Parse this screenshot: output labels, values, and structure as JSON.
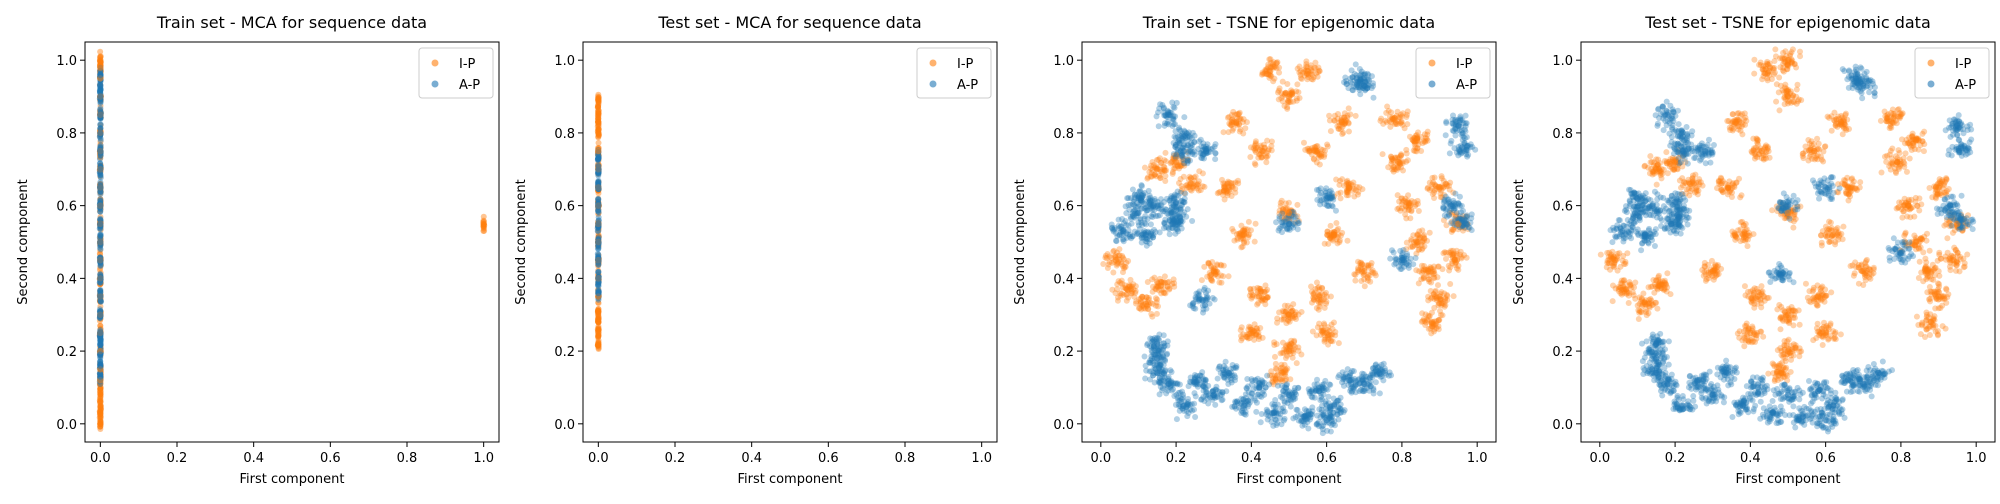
{
  "colors": {
    "ip": "#ff7f0e",
    "ap": "#1f77b4"
  },
  "chart_data": [
    {
      "type": "scatter",
      "title": "Train set - MCA for sequence data",
      "xlabel": "First component",
      "ylabel": "Second component",
      "xlim": [
        -0.04,
        1.04
      ],
      "ylim": [
        -0.05,
        1.05
      ],
      "xticks": [
        "0.0",
        "0.2",
        "0.4",
        "0.6",
        "0.8",
        "1.0"
      ],
      "yticks": [
        "0.0",
        "0.2",
        "0.4",
        "0.6",
        "0.8",
        "1.0"
      ],
      "legend": [
        "I-P",
        "A-P"
      ],
      "legend_position": "top-right",
      "series": [
        {
          "name": "I-P",
          "points": [
            [
              0.0,
              0.0
            ],
            [
              0.0,
              0.03
            ],
            [
              0.0,
              0.06
            ],
            [
              0.0,
              0.09
            ],
            [
              0.0,
              0.12
            ],
            [
              0.0,
              0.15
            ],
            [
              0.0,
              0.2
            ],
            [
              0.0,
              0.25
            ],
            [
              0.0,
              0.3
            ],
            [
              0.0,
              0.35
            ],
            [
              0.0,
              0.4
            ],
            [
              0.0,
              0.45
            ],
            [
              0.0,
              0.5
            ],
            [
              0.0,
              0.55
            ],
            [
              0.0,
              0.6
            ],
            [
              0.0,
              0.65
            ],
            [
              0.0,
              0.7
            ],
            [
              0.0,
              0.75
            ],
            [
              0.0,
              0.8
            ],
            [
              0.0,
              0.85
            ],
            [
              0.0,
              0.9
            ],
            [
              0.0,
              0.95
            ],
            [
              0.0,
              0.98
            ],
            [
              0.0,
              1.0
            ],
            [
              1.0,
              0.55
            ]
          ]
        },
        {
          "name": "A-P",
          "points": [
            [
              0.0,
              0.13
            ],
            [
              0.0,
              0.16
            ],
            [
              0.0,
              0.19
            ],
            [
              0.0,
              0.22
            ],
            [
              0.0,
              0.25
            ],
            [
              0.0,
              0.3
            ],
            [
              0.0,
              0.35
            ],
            [
              0.0,
              0.4
            ],
            [
              0.0,
              0.45
            ],
            [
              0.0,
              0.5
            ],
            [
              0.0,
              0.55
            ],
            [
              0.0,
              0.6
            ],
            [
              0.0,
              0.65
            ],
            [
              0.0,
              0.7
            ],
            [
              0.0,
              0.75
            ],
            [
              0.0,
              0.8
            ],
            [
              0.0,
              0.85
            ],
            [
              0.0,
              0.9
            ],
            [
              0.0,
              0.93
            ],
            [
              0.0,
              0.96
            ]
          ]
        }
      ]
    },
    {
      "type": "scatter",
      "title": "Test set - MCA for sequence data",
      "xlabel": "First component",
      "ylabel": "Second component",
      "xlim": [
        -0.04,
        1.04
      ],
      "ylim": [
        -0.05,
        1.05
      ],
      "xticks": [
        "0.0",
        "0.2",
        "0.4",
        "0.6",
        "0.8",
        "1.0"
      ],
      "yticks": [
        "0.0",
        "0.2",
        "0.4",
        "0.6",
        "0.8",
        "1.0"
      ],
      "legend": [
        "I-P",
        "A-P"
      ],
      "legend_position": "top-right",
      "series": [
        {
          "name": "I-P",
          "points": [
            [
              0.0,
              0.22
            ],
            [
              0.0,
              0.25
            ],
            [
              0.0,
              0.28
            ],
            [
              0.0,
              0.31
            ],
            [
              0.0,
              0.35
            ],
            [
              0.0,
              0.4
            ],
            [
              0.0,
              0.45
            ],
            [
              0.0,
              0.5
            ],
            [
              0.0,
              0.55
            ],
            [
              0.0,
              0.6
            ],
            [
              0.0,
              0.65
            ],
            [
              0.0,
              0.7
            ],
            [
              0.0,
              0.75
            ],
            [
              0.0,
              0.8
            ],
            [
              0.0,
              0.83
            ],
            [
              0.0,
              0.86
            ],
            [
              0.0,
              0.89
            ]
          ]
        },
        {
          "name": "A-P",
          "points": [
            [
              0.0,
              0.36
            ],
            [
              0.0,
              0.4
            ],
            [
              0.0,
              0.45
            ],
            [
              0.0,
              0.5
            ],
            [
              0.0,
              0.55
            ],
            [
              0.0,
              0.6
            ],
            [
              0.0,
              0.65
            ],
            [
              0.0,
              0.7
            ],
            [
              0.0,
              0.73
            ]
          ]
        }
      ]
    },
    {
      "type": "scatter",
      "title": "Train set - TSNE for epigenomic data",
      "xlabel": "First component",
      "ylabel": "Second component",
      "xlim": [
        -0.05,
        1.05
      ],
      "ylim": [
        -0.05,
        1.05
      ],
      "xticks": [
        "0.0",
        "0.2",
        "0.4",
        "0.6",
        "0.8",
        "1.0"
      ],
      "yticks": [
        "0.0",
        "0.2",
        "0.4",
        "0.6",
        "0.8",
        "1.0"
      ],
      "legend": [
        "I-P",
        "A-P"
      ],
      "legend_position": "top-right",
      "series": [
        {
          "name": "I-P",
          "points": [
            [
              0.5,
              0.58
            ],
            [
              0.43,
              0.75
            ],
            [
              0.57,
              0.75
            ],
            [
              0.38,
              0.52
            ],
            [
              0.62,
              0.52
            ],
            [
              0.5,
              0.3
            ],
            [
              0.42,
              0.35
            ],
            [
              0.58,
              0.35
            ],
            [
              0.34,
              0.65
            ],
            [
              0.66,
              0.65
            ],
            [
              0.5,
              0.9
            ],
            [
              0.45,
              0.97
            ],
            [
              0.55,
              0.97
            ],
            [
              0.3,
              0.42
            ],
            [
              0.7,
              0.42
            ],
            [
              0.5,
              0.2
            ],
            [
              0.4,
              0.25
            ],
            [
              0.6,
              0.25
            ],
            [
              0.36,
              0.83
            ],
            [
              0.64,
              0.83
            ],
            [
              0.48,
              0.14
            ],
            [
              0.87,
              0.42
            ],
            [
              0.9,
              0.35
            ],
            [
              0.84,
              0.5
            ],
            [
              0.94,
              0.45
            ],
            [
              0.88,
              0.28
            ],
            [
              0.82,
              0.6
            ],
            [
              0.79,
              0.72
            ],
            [
              0.84,
              0.78
            ],
            [
              0.78,
              0.84
            ],
            [
              0.9,
              0.65
            ],
            [
              0.95,
              0.55
            ],
            [
              0.07,
              0.37
            ],
            [
              0.12,
              0.33
            ],
            [
              0.16,
              0.38
            ],
            [
              0.04,
              0.45
            ],
            [
              0.2,
              0.72
            ],
            [
              0.24,
              0.66
            ],
            [
              0.15,
              0.7
            ]
          ]
        },
        {
          "name": "A-P",
          "points": [
            [
              0.22,
              0.05
            ],
            [
              0.3,
              0.08
            ],
            [
              0.38,
              0.05
            ],
            [
              0.46,
              0.03
            ],
            [
              0.54,
              0.02
            ],
            [
              0.62,
              0.05
            ],
            [
              0.7,
              0.11
            ],
            [
              0.74,
              0.14
            ],
            [
              0.26,
              0.12
            ],
            [
              0.34,
              0.14
            ],
            [
              0.42,
              0.1
            ],
            [
              0.5,
              0.08
            ],
            [
              0.58,
              0.09
            ],
            [
              0.66,
              0.12
            ],
            [
              0.18,
              0.11
            ],
            [
              0.6,
              0.01
            ],
            [
              0.15,
              0.22
            ],
            [
              0.15,
              0.18
            ],
            [
              0.15,
              0.14
            ],
            [
              0.06,
              0.53
            ],
            [
              0.1,
              0.58
            ],
            [
              0.14,
              0.6
            ],
            [
              0.19,
              0.55
            ],
            [
              0.12,
              0.52
            ],
            [
              0.1,
              0.62
            ],
            [
              0.18,
              0.85
            ],
            [
              0.22,
              0.79
            ],
            [
              0.22,
              0.75
            ],
            [
              0.28,
              0.75
            ],
            [
              0.68,
              0.95
            ],
            [
              0.7,
              0.93
            ],
            [
              0.95,
              0.82
            ],
            [
              0.96,
              0.76
            ],
            [
              0.93,
              0.6
            ],
            [
              0.96,
              0.56
            ],
            [
              0.2,
              0.61
            ],
            [
              0.21,
              0.57
            ],
            [
              0.5,
              0.55
            ],
            [
              0.6,
              0.62
            ],
            [
              0.8,
              0.45
            ],
            [
              0.27,
              0.34
            ]
          ]
        }
      ]
    },
    {
      "type": "scatter",
      "title": "Test set - TSNE for epigenomic data",
      "xlabel": "First component",
      "ylabel": "Second component",
      "xlim": [
        -0.05,
        1.05
      ],
      "ylim": [
        -0.05,
        1.05
      ],
      "xticks": [
        "0.0",
        "0.2",
        "0.4",
        "0.6",
        "0.8",
        "1.0"
      ],
      "yticks": [
        "0.0",
        "0.2",
        "0.4",
        "0.6",
        "0.8",
        "1.0"
      ],
      "legend": [
        "I-P",
        "A-P"
      ],
      "legend_position": "top-right",
      "series": [
        {
          "name": "I-P",
          "points": [
            [
              0.5,
              0.58
            ],
            [
              0.43,
              0.75
            ],
            [
              0.57,
              0.75
            ],
            [
              0.38,
              0.52
            ],
            [
              0.62,
              0.52
            ],
            [
              0.5,
              0.3
            ],
            [
              0.42,
              0.35
            ],
            [
              0.58,
              0.35
            ],
            [
              0.34,
              0.65
            ],
            [
              0.66,
              0.65
            ],
            [
              0.5,
              0.9
            ],
            [
              0.45,
              0.97
            ],
            [
              0.5,
              1.0
            ],
            [
              0.3,
              0.42
            ],
            [
              0.7,
              0.42
            ],
            [
              0.5,
              0.2
            ],
            [
              0.4,
              0.25
            ],
            [
              0.6,
              0.25
            ],
            [
              0.36,
              0.83
            ],
            [
              0.64,
              0.83
            ],
            [
              0.48,
              0.14
            ],
            [
              0.87,
              0.42
            ],
            [
              0.9,
              0.35
            ],
            [
              0.84,
              0.5
            ],
            [
              0.94,
              0.45
            ],
            [
              0.88,
              0.28
            ],
            [
              0.82,
              0.6
            ],
            [
              0.79,
              0.72
            ],
            [
              0.84,
              0.78
            ],
            [
              0.78,
              0.84
            ],
            [
              0.9,
              0.65
            ],
            [
              0.95,
              0.55
            ],
            [
              0.07,
              0.37
            ],
            [
              0.12,
              0.33
            ],
            [
              0.16,
              0.38
            ],
            [
              0.04,
              0.45
            ],
            [
              0.2,
              0.72
            ],
            [
              0.24,
              0.66
            ],
            [
              0.15,
              0.7
            ]
          ]
        },
        {
          "name": "A-P",
          "points": [
            [
              0.22,
              0.05
            ],
            [
              0.3,
              0.08
            ],
            [
              0.38,
              0.05
            ],
            [
              0.46,
              0.03
            ],
            [
              0.54,
              0.02
            ],
            [
              0.62,
              0.05
            ],
            [
              0.7,
              0.11
            ],
            [
              0.74,
              0.14
            ],
            [
              0.26,
              0.12
            ],
            [
              0.34,
              0.14
            ],
            [
              0.42,
              0.1
            ],
            [
              0.5,
              0.08
            ],
            [
              0.58,
              0.09
            ],
            [
              0.66,
              0.12
            ],
            [
              0.18,
              0.11
            ],
            [
              0.6,
              0.01
            ],
            [
              0.15,
              0.22
            ],
            [
              0.15,
              0.18
            ],
            [
              0.15,
              0.14
            ],
            [
              0.06,
              0.53
            ],
            [
              0.1,
              0.58
            ],
            [
              0.14,
              0.6
            ],
            [
              0.19,
              0.55
            ],
            [
              0.12,
              0.52
            ],
            [
              0.1,
              0.62
            ],
            [
              0.18,
              0.85
            ],
            [
              0.22,
              0.79
            ],
            [
              0.22,
              0.75
            ],
            [
              0.28,
              0.75
            ],
            [
              0.68,
              0.95
            ],
            [
              0.7,
              0.93
            ],
            [
              0.95,
              0.82
            ],
            [
              0.96,
              0.76
            ],
            [
              0.93,
              0.6
            ],
            [
              0.96,
              0.56
            ],
            [
              0.2,
              0.61
            ],
            [
              0.21,
              0.57
            ],
            [
              0.5,
              0.6
            ],
            [
              0.6,
              0.65
            ],
            [
              0.8,
              0.47
            ],
            [
              0.48,
              0.41
            ]
          ]
        }
      ]
    }
  ]
}
